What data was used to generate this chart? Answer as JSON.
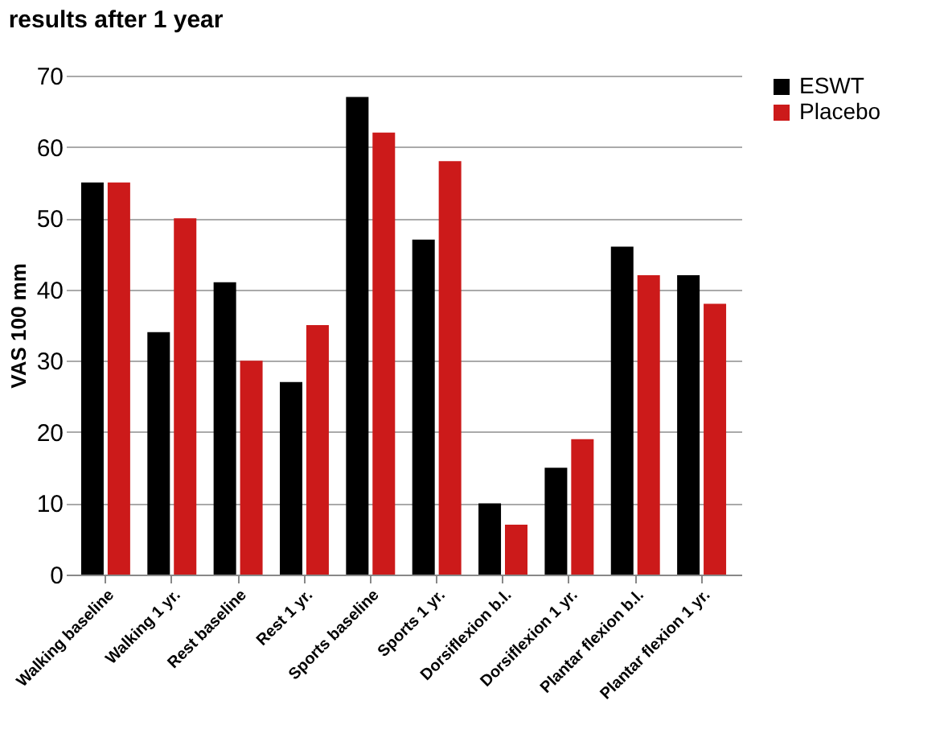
{
  "chart_data": {
    "type": "bar",
    "title": "results after 1 year",
    "ylabel": "VAS 100 mm",
    "categories": [
      "Walking baseline",
      "Walking 1 yr.",
      "Rest baseline",
      "Rest 1 yr.",
      "Sports baseline",
      "Sports 1 yr.",
      "Dorsiflexion b.l.",
      "Dorsiflexion 1 yr.",
      "Plantar flexion b.l.",
      "Plantar flexion 1 yr."
    ],
    "series": [
      {
        "name": "ESWT",
        "color": "#000000",
        "values": [
          55,
          34,
          41,
          27,
          67,
          47,
          10,
          15,
          46,
          42
        ]
      },
      {
        "name": "Placebo",
        "color": "#cc1a1a",
        "values": [
          55,
          50,
          30,
          35,
          62,
          58,
          7,
          19,
          42,
          38
        ]
      }
    ],
    "ylim": [
      0,
      70
    ],
    "yticks": [
      0,
      10,
      20,
      30,
      40,
      50,
      60,
      70
    ],
    "grid": "y",
    "legend": "right"
  }
}
